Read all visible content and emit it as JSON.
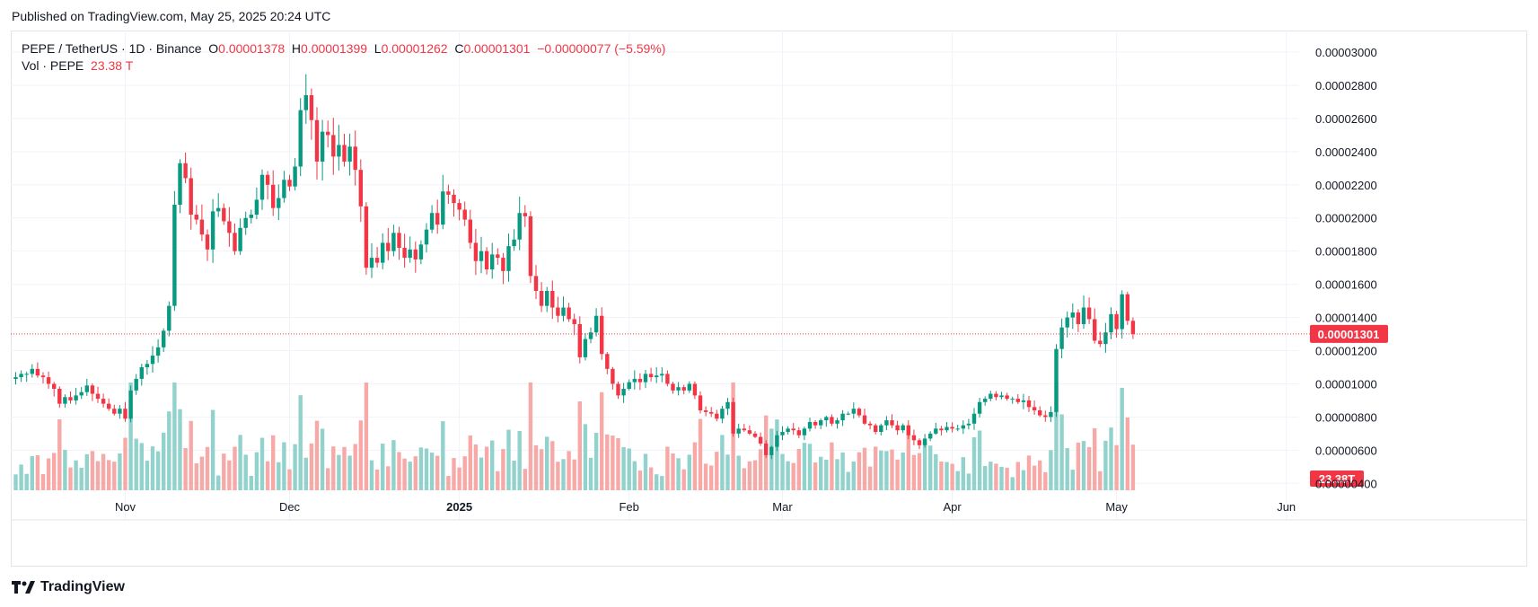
{
  "published": "Published on TradingView.com, May 25, 2025 20:24 UTC",
  "legend": {
    "symbol": "PEPE / TetherUS · 1D · Binance",
    "o_label": "O",
    "o_value": "0.00001378",
    "h_label": "H",
    "h_value": "0.00001399",
    "l_label": "L",
    "l_value": "0.00001262",
    "c_label": "C",
    "c_value": "0.00001301",
    "change": "−0.00000077 (−5.59%)",
    "vol_label": "Vol · PEPE",
    "vol_value": "23.38 T"
  },
  "footer": {
    "brand": "TradingView"
  },
  "colors": {
    "up": "#089981",
    "down": "#f23645",
    "up_vol": "#92d2cc",
    "down_vol": "#f7a9a7",
    "grid": "#f0f3fa",
    "text": "#131722"
  },
  "chart_data": {
    "type": "candlestick",
    "title": "PEPE / TetherUS · 1D · Binance",
    "y_ticks": [
      "0.00000400",
      "0.00000600",
      "0.00000800",
      "0.00001000",
      "0.00001200",
      "0.00001400",
      "0.00001600",
      "0.00001800",
      "0.00002000",
      "0.00002200",
      "0.00002400",
      "0.00002600",
      "0.00002800",
      "0.00003000"
    ],
    "y_tick_values": [
      4e-06,
      6e-06,
      8e-06,
      1e-05,
      1.2e-05,
      1.4e-05,
      1.6e-05,
      1.8e-05,
      2e-05,
      2.2e-05,
      2.4e-05,
      2.6e-05,
      2.8e-05,
      3e-05
    ],
    "ylim": [
      3.15e-06,
      3.13e-05
    ],
    "x_labels": [
      {
        "label": "Nov",
        "index": 20
      },
      {
        "label": "Dec",
        "index": 50
      },
      {
        "label": "2025",
        "index": 81
      },
      {
        "label": "Feb",
        "index": 112
      },
      {
        "label": "Mar",
        "index": 140
      },
      {
        "label": "Apr",
        "index": 171
      },
      {
        "label": "May",
        "index": 201
      },
      {
        "label": "Jun",
        "index": 232
      }
    ],
    "last_price_label": "0.00001301",
    "last_price": 1.301e-05,
    "last_volume_label": "23.38T",
    "closes": [
      10.4,
      10.6,
      10.6,
      10.9,
      10.5,
      10.4,
      10.0,
      9.7,
      8.8,
      9.2,
      9.0,
      9.3,
      9.5,
      9.9,
      9.4,
      9.1,
      8.8,
      8.5,
      8.2,
      8.5,
      7.9,
      9.6,
      10.3,
      11.0,
      11.2,
      11.7,
      12.2,
      13.2,
      14.7,
      20.8,
      23.3,
      22.4,
      20.2,
      19.9,
      19.0,
      18.1,
      20.4,
      20.6,
      19.8,
      19.1,
      18.0,
      19.4,
      20.0,
      20.2,
      21.1,
      22.6,
      22.0,
      20.6,
      21.2,
      22.3,
      21.9,
      23.1,
      26.5,
      27.4,
      25.9,
      23.4,
      25.2,
      25.0,
      23.7,
      24.4,
      23.4,
      24.3,
      22.9,
      20.7,
      17.0,
      17.6,
      17.3,
      18.5,
      18.0,
      19.1,
      18.2,
      17.6,
      18.1,
      17.5,
      18.4,
      19.3,
      20.3,
      19.6,
      21.6,
      21.4,
      20.9,
      20.5,
      19.9,
      18.5,
      17.4,
      18.0,
      16.9,
      17.8,
      17.6,
      16.8,
      18.3,
      18.7,
      20.3,
      20.1,
      16.5,
      15.6,
      14.7,
      15.6,
      14.6,
      14.1,
      14.6,
      13.9,
      13.6,
      11.6,
      12.7,
      13.1,
      14.1,
      11.8,
      10.9,
      10.0,
      9.3,
      9.7,
      10.1,
      10.3,
      10.1,
      10.6,
      10.4,
      10.5,
      10.6,
      10.0,
      9.6,
      9.8,
      9.6,
      10.0,
      9.3,
      8.4,
      8.3,
      8.2,
      7.9,
      8.5,
      8.9,
      7.0,
      7.3,
      7.2,
      7.0,
      6.8,
      6.4,
      5.7,
      6.2,
      6.9,
      7.1,
      7.3,
      7.2,
      6.9,
      7.3,
      7.7,
      7.5,
      7.8,
      8.0,
      7.6,
      7.8,
      8.2,
      8.2,
      8.5,
      8.1,
      7.6,
      7.5,
      7.1,
      7.5,
      7.8,
      7.5,
      7.2,
      7.5,
      6.9,
      6.6,
      6.3,
      6.7,
      7.0,
      7.3,
      7.2,
      7.4,
      7.3,
      7.3,
      7.5,
      7.6,
      8.2,
      8.9,
      9.1,
      9.4,
      9.2,
      9.3,
      9.1,
      9.1,
      8.9,
      9.0,
      8.6,
      8.4,
      8.1,
      8.0,
      8.3,
      12.1,
      13.4,
      14.0,
      14.3,
      13.6,
      14.6,
      13.9,
      12.6,
      12.4,
      13.1,
      14.2,
      13.3,
      15.4,
      13.8,
      13.0
    ],
    "volume_unit": "T",
    "volume_max_label": "23.38T"
  }
}
